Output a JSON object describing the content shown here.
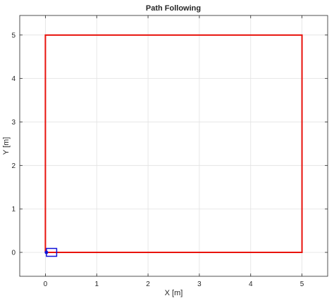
{
  "chart_data": {
    "type": "line",
    "title": "Path Following",
    "xlabel": "X [m]",
    "ylabel": "Y [m]",
    "xlim": [
      -0.5,
      5.5
    ],
    "ylim": [
      -0.55,
      5.45
    ],
    "xticks": [
      0,
      1,
      2,
      3,
      4,
      5
    ],
    "yticks": [
      0,
      1,
      2,
      3,
      4,
      5
    ],
    "grid": true,
    "series": [
      {
        "color": "#e8120c",
        "x": [
          0,
          5,
          5,
          0,
          0
        ],
        "y": [
          0,
          0,
          5,
          5,
          0
        ]
      }
    ],
    "vehicle": {
      "shape": "square",
      "color": "#1010d8",
      "x_min": 0.02,
      "x_max": 0.22,
      "y_min": -0.09,
      "y_max": 0.09,
      "marker_x": 0.02,
      "marker_y": 0
    }
  }
}
